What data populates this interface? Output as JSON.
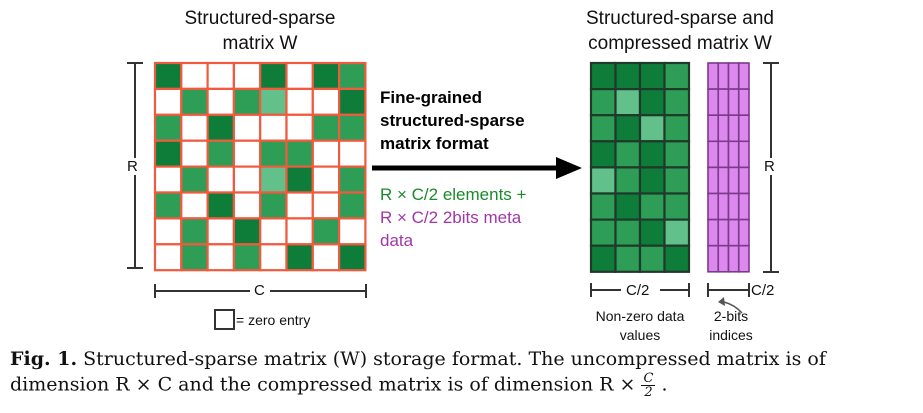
{
  "left_title": [
    "Structured-sparse",
    "matrix W"
  ],
  "right_title": [
    "Structured-sparse and",
    "compressed matrix W"
  ],
  "format_label": [
    "Fine-grained",
    "structured-sparse",
    "matrix format"
  ],
  "elements_label": "R × C/2 elements +",
  "meta_label": [
    "R × C/2 2bits meta",
    "data"
  ],
  "dim_r": "R",
  "dim_c": "C",
  "dim_c_half": "C/2",
  "dim_c_half_idx": "C/2",
  "legend_label": "= zero entry",
  "values_caption": [
    "Non-zero data",
    "values"
  ],
  "indices_caption": [
    "2-bits",
    "indices"
  ],
  "caption": {
    "fig": "Fig. 1.",
    "line1": "Structured-sparse matrix (W) storage format. The uncompressed matrix is of",
    "line2": "dimension R × C and the compressed matrix is of dimension R ×",
    "frac_num": "C",
    "frac_den": "2",
    "end": "."
  },
  "colors": {
    "grid_border": "#f05a3e",
    "green_dark": "#0e7d3a",
    "green_mid": "#2e9e57",
    "green_light": "#62c08a",
    "compressed_border": "#1f3a2a",
    "purple": "#dd88ee",
    "purple_border": "#7b3a8a",
    "green_text": "#1a8a2a",
    "purple_text": "#a236a8"
  }
}
